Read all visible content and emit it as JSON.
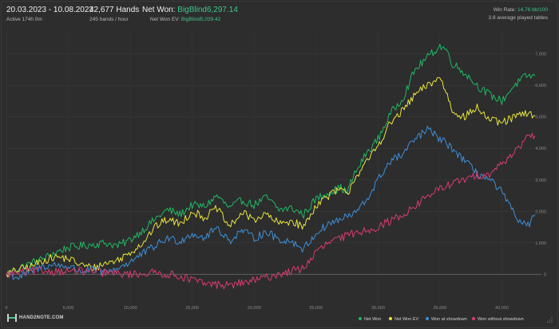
{
  "header": {
    "date_range": "20.03.2023 - 10.08.2023",
    "active": "Active 174h 0m",
    "hands": "42,677 Hands",
    "hands_rate": "245 hands / hour",
    "net_won_label": "Net Won:",
    "net_won_value": "BigBlind6,297.14",
    "net_won_ev_label": "Net Won  EV:",
    "net_won_ev_value": "BigBlind5,039.42",
    "win_rate_label": "Win Rate:",
    "win_rate_value": "14.76 bb/100",
    "tables": "3.8 average played tables"
  },
  "logo": {
    "text": "HAND2NOTE.COM"
  },
  "colors": {
    "net_won": "#1fb863",
    "net_won_ev": "#e8e53a",
    "showdown": "#3d8fd9",
    "non_showdown": "#d83b72",
    "accent": "#3ec68a",
    "grid": "#3a3a3a"
  },
  "chart_data": {
    "type": "line",
    "x_range": [
      0,
      42677
    ],
    "y_range": [
      -700,
      7700
    ],
    "x_ticks": [
      "0",
      "5,000",
      "10,000",
      "15,000",
      "20,000",
      "25,000",
      "30,000",
      "35,000",
      "40,000"
    ],
    "x_tick_values": [
      0,
      5000,
      10000,
      15000,
      20000,
      25000,
      30000,
      35000,
      40000
    ],
    "y_ticks": [
      "0",
      "1,000",
      "2,000",
      "3,000",
      "4,000",
      "5,000",
      "6,000",
      "7,000"
    ],
    "y_tick_values": [
      0,
      1000,
      2000,
      3000,
      4000,
      5000,
      6000,
      7000
    ],
    "legend_position": "bottom-right",
    "grid": true,
    "series": [
      {
        "name": "Net Won",
        "color": "#1fb863",
        "points": [
          [
            0,
            0
          ],
          [
            1000,
            200
          ],
          [
            2000,
            350
          ],
          [
            3000,
            500
          ],
          [
            4000,
            700
          ],
          [
            5000,
            850
          ],
          [
            6000,
            900
          ],
          [
            7000,
            950
          ],
          [
            8000,
            1000
          ],
          [
            9000,
            900
          ],
          [
            10000,
            1100
          ],
          [
            11000,
            1400
          ],
          [
            12000,
            1750
          ],
          [
            13000,
            2050
          ],
          [
            14000,
            1900
          ],
          [
            15000,
            2200
          ],
          [
            16000,
            2150
          ],
          [
            17000,
            2500
          ],
          [
            18000,
            2100
          ],
          [
            19000,
            2350
          ],
          [
            20000,
            2200
          ],
          [
            21000,
            2450
          ],
          [
            22000,
            2050
          ],
          [
            23000,
            2100
          ],
          [
            24000,
            1900
          ],
          [
            25000,
            2400
          ],
          [
            26000,
            2600
          ],
          [
            27000,
            2750
          ],
          [
            27500,
            2600
          ],
          [
            28000,
            3100
          ],
          [
            29000,
            3800
          ],
          [
            30000,
            4300
          ],
          [
            31000,
            5100
          ],
          [
            32000,
            5600
          ],
          [
            33000,
            6500
          ],
          [
            34000,
            6900
          ],
          [
            35000,
            7250
          ],
          [
            35500,
            7150
          ],
          [
            36000,
            6700
          ],
          [
            37000,
            6400
          ],
          [
            38000,
            6000
          ],
          [
            39000,
            5700
          ],
          [
            40000,
            5500
          ],
          [
            41000,
            6000
          ],
          [
            42000,
            6300
          ],
          [
            42677,
            6297
          ]
        ]
      },
      {
        "name": "Net Won  EV",
        "color": "#e8e53a",
        "points": [
          [
            0,
            0
          ],
          [
            1000,
            150
          ],
          [
            2000,
            250
          ],
          [
            3000,
            450
          ],
          [
            4000,
            550
          ],
          [
            5000,
            500
          ],
          [
            6000,
            300
          ],
          [
            7000,
            200
          ],
          [
            8000,
            350
          ],
          [
            9000,
            450
          ],
          [
            10000,
            700
          ],
          [
            11000,
            1000
          ],
          [
            12000,
            1500
          ],
          [
            13000,
            1750
          ],
          [
            14000,
            1600
          ],
          [
            15000,
            2000
          ],
          [
            16000,
            1800
          ],
          [
            17000,
            2100
          ],
          [
            18000,
            1500
          ],
          [
            19000,
            1950
          ],
          [
            20000,
            1750
          ],
          [
            21000,
            1900
          ],
          [
            22000,
            1600
          ],
          [
            23000,
            1700
          ],
          [
            24000,
            1500
          ],
          [
            25000,
            2200
          ],
          [
            26000,
            2500
          ],
          [
            27000,
            2700
          ],
          [
            27500,
            2500
          ],
          [
            28000,
            3000
          ],
          [
            29000,
            3500
          ],
          [
            30000,
            4100
          ],
          [
            31000,
            4800
          ],
          [
            32000,
            5200
          ],
          [
            33000,
            5700
          ],
          [
            34000,
            6000
          ],
          [
            35000,
            6250
          ],
          [
            35500,
            5800
          ],
          [
            36000,
            5200
          ],
          [
            37000,
            5000
          ],
          [
            38000,
            5300
          ],
          [
            39000,
            4900
          ],
          [
            40000,
            4800
          ],
          [
            41000,
            5000
          ],
          [
            42000,
            5100
          ],
          [
            42677,
            5039
          ]
        ]
      },
      {
        "name": "Won at showdown",
        "color": "#3d8fd9",
        "points": [
          [
            0,
            0
          ],
          [
            1000,
            -100
          ],
          [
            2000,
            100
          ],
          [
            3000,
            250
          ],
          [
            4000,
            300
          ],
          [
            5000,
            250
          ],
          [
            6000,
            100
          ],
          [
            7000,
            150
          ],
          [
            8000,
            50
          ],
          [
            9000,
            200
          ],
          [
            10000,
            400
          ],
          [
            11000,
            650
          ],
          [
            12000,
            900
          ],
          [
            13000,
            1150
          ],
          [
            14000,
            1050
          ],
          [
            15000,
            1300
          ],
          [
            16000,
            1150
          ],
          [
            17000,
            1500
          ],
          [
            18000,
            1050
          ],
          [
            19000,
            1400
          ],
          [
            20000,
            1150
          ],
          [
            21000,
            1350
          ],
          [
            22000,
            1100
          ],
          [
            23000,
            1050
          ],
          [
            24000,
            800
          ],
          [
            25000,
            1300
          ],
          [
            26000,
            1600
          ],
          [
            27000,
            1750
          ],
          [
            28000,
            1900
          ],
          [
            29000,
            2300
          ],
          [
            30000,
            3000
          ],
          [
            31000,
            3600
          ],
          [
            32000,
            3800
          ],
          [
            33000,
            4300
          ],
          [
            34000,
            4600
          ],
          [
            35000,
            4300
          ],
          [
            36000,
            4000
          ],
          [
            37000,
            3600
          ],
          [
            38000,
            3200
          ],
          [
            39000,
            3000
          ],
          [
            40000,
            2600
          ],
          [
            41000,
            1900
          ],
          [
            42000,
            1500
          ],
          [
            42677,
            1900
          ]
        ]
      },
      {
        "name": "Won without showdown",
        "color": "#d83b72",
        "points": [
          [
            0,
            0
          ],
          [
            2000,
            100
          ],
          [
            4000,
            100
          ],
          [
            6000,
            100
          ],
          [
            8000,
            50
          ],
          [
            10000,
            0
          ],
          [
            12000,
            50
          ],
          [
            14000,
            -50
          ],
          [
            16000,
            -300
          ],
          [
            18000,
            -350
          ],
          [
            20000,
            -200
          ],
          [
            22000,
            0
          ],
          [
            24000,
            200
          ],
          [
            25000,
            700
          ],
          [
            26000,
            1000
          ],
          [
            27000,
            1150
          ],
          [
            28000,
            1300
          ],
          [
            29000,
            1400
          ],
          [
            30000,
            1500
          ],
          [
            31000,
            1700
          ],
          [
            32000,
            1900
          ],
          [
            33000,
            2150
          ],
          [
            34000,
            2500
          ],
          [
            35000,
            2700
          ],
          [
            36000,
            2900
          ],
          [
            37000,
            3000
          ],
          [
            38000,
            3150
          ],
          [
            39000,
            3200
          ],
          [
            40000,
            3500
          ],
          [
            41000,
            3900
          ],
          [
            42000,
            4300
          ],
          [
            42677,
            4400
          ]
        ]
      }
    ]
  }
}
